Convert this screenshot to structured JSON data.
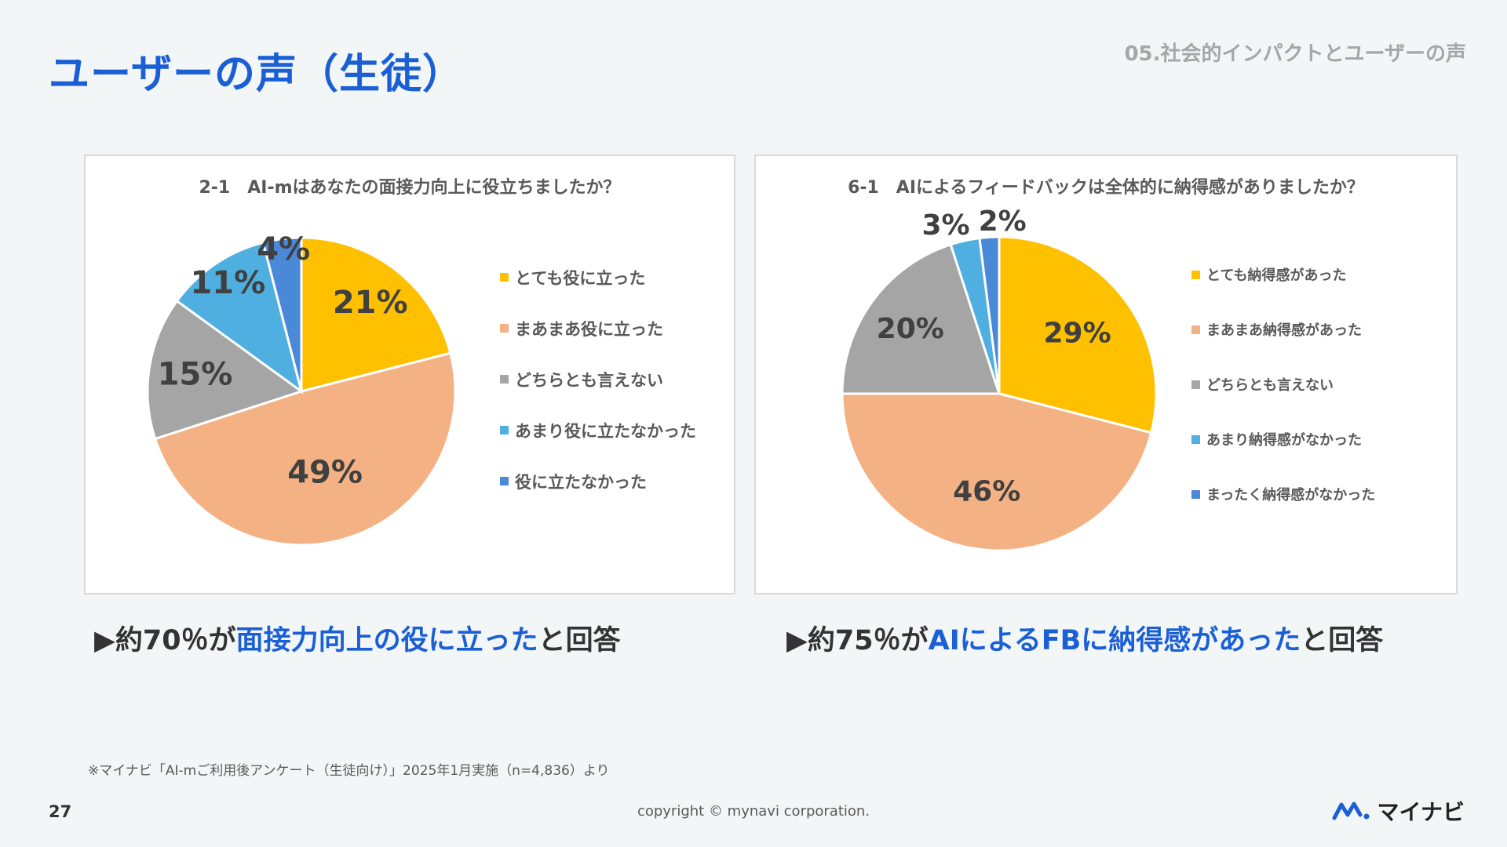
{
  "header": {
    "title": "ユーザーの声（生徒）",
    "section": "05.社会的インパクトとユーザーの声"
  },
  "colors": {
    "accent": "#1a5fd6",
    "slices": [
      "#ffc000",
      "#f4b183",
      "#a5a5a5",
      "#4fafe0",
      "#4a89d8"
    ]
  },
  "chart_data": [
    {
      "type": "pie",
      "title": "2-1　AI-mはあなたの面接力向上に役立ちましたか？",
      "categories": [
        "とても役に立った",
        "まあまあ役に立った",
        "どちらとも言えない",
        "あまり役に立たなかった",
        "役に立たなかった"
      ],
      "values": [
        21,
        49,
        15,
        11,
        4
      ],
      "labels": [
        "21%",
        "49%",
        "15%",
        "11%",
        "4%"
      ],
      "legend": "right"
    },
    {
      "type": "pie",
      "title": "6-1　AIによるフィードバックは全体的に納得感がありましたか？",
      "categories": [
        "とても納得感があった",
        "まあまあ納得感があった",
        "どちらとも言えない",
        "あまり納得感がなかった",
        "まったく納得感がなかった"
      ],
      "values": [
        29,
        46,
        20,
        3,
        2
      ],
      "labels": [
        "29%",
        "46%",
        "20%",
        "3%",
        "2%"
      ],
      "legend": "right"
    }
  ],
  "summaries": [
    {
      "arrow": "▶",
      "prefix": "約70％が",
      "highlight": "面接力向上の役に立った",
      "suffix": "と回答"
    },
    {
      "arrow": "▶",
      "prefix": "約75％が",
      "highlight": "AIによるFBに納得感があった",
      "suffix": "と回答"
    }
  ],
  "footer": {
    "footnote": "※マイナビ「AI-mご利用後アンケート（生徒向け）」2025年1月実施（n=4,836）より",
    "page_number": "27",
    "copyright": "copyright © mynavi corporation.",
    "logo_text": "マイナビ"
  }
}
